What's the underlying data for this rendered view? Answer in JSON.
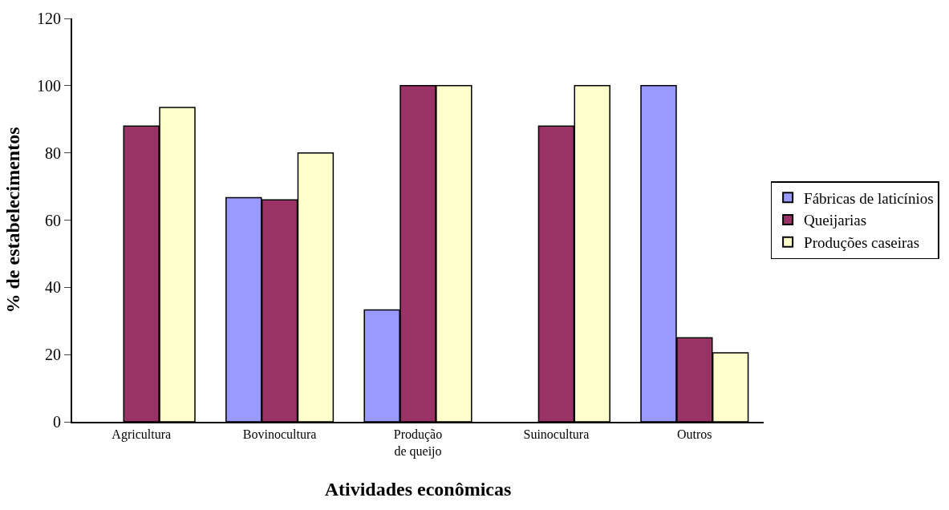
{
  "chart_data": {
    "type": "bar",
    "xlabel": "Atividades econômicas",
    "ylabel": "% de estabelecimentos",
    "categories": [
      "Agricultura",
      "Bovinocultura",
      "Produção\nde queijo",
      "Suinocultura",
      "Outros"
    ],
    "series": [
      {
        "name": "Fábricas de laticínios",
        "color": "#9999ff",
        "values": [
          null,
          66.7,
          33.3,
          null,
          100
        ]
      },
      {
        "name": "Queijarias",
        "color": "#993366",
        "values": [
          88,
          66,
          100,
          88,
          25
        ]
      },
      {
        "name": "Produções caseiras",
        "color": "#ffffcc",
        "values": [
          93.5,
          80,
          100,
          100,
          20.5
        ]
      }
    ],
    "ylim": [
      0,
      120
    ],
    "yticks": [
      0,
      20,
      40,
      60,
      80,
      100,
      120
    ],
    "legend": "right"
  }
}
